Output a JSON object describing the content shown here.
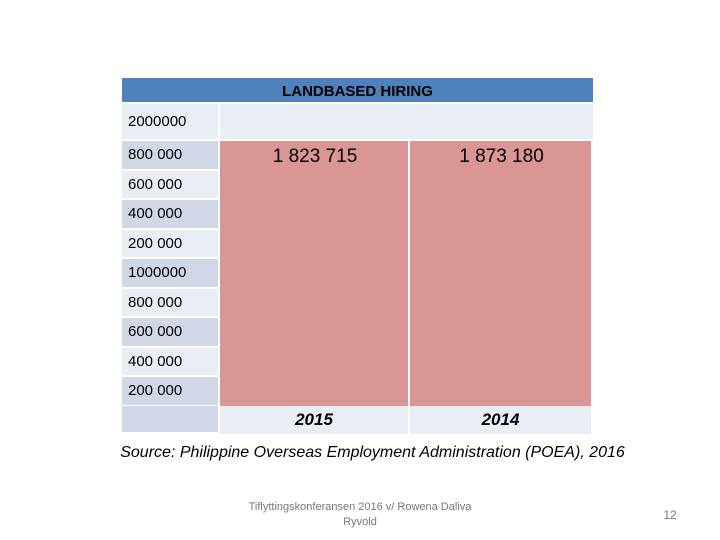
{
  "table": {
    "title": "LANDBASED HIRING",
    "row_labels": [
      "2000000",
      "800 000",
      "600 000",
      "400 000",
      "200 000",
      "1000000",
      "800 000",
      "600 000",
      "400 000",
      "200 000"
    ],
    "columns": [
      {
        "value": "1 823 715",
        "year": "2015"
      },
      {
        "value": "1 873 180",
        "year": "2014"
      }
    ]
  },
  "source": "Source: Philippine Overseas Employment Administration (POEA), 2016",
  "footer": "Tiflyttingskonferansen 2016 v/ Rowena Daliva Ryvold",
  "page_number": "12"
}
